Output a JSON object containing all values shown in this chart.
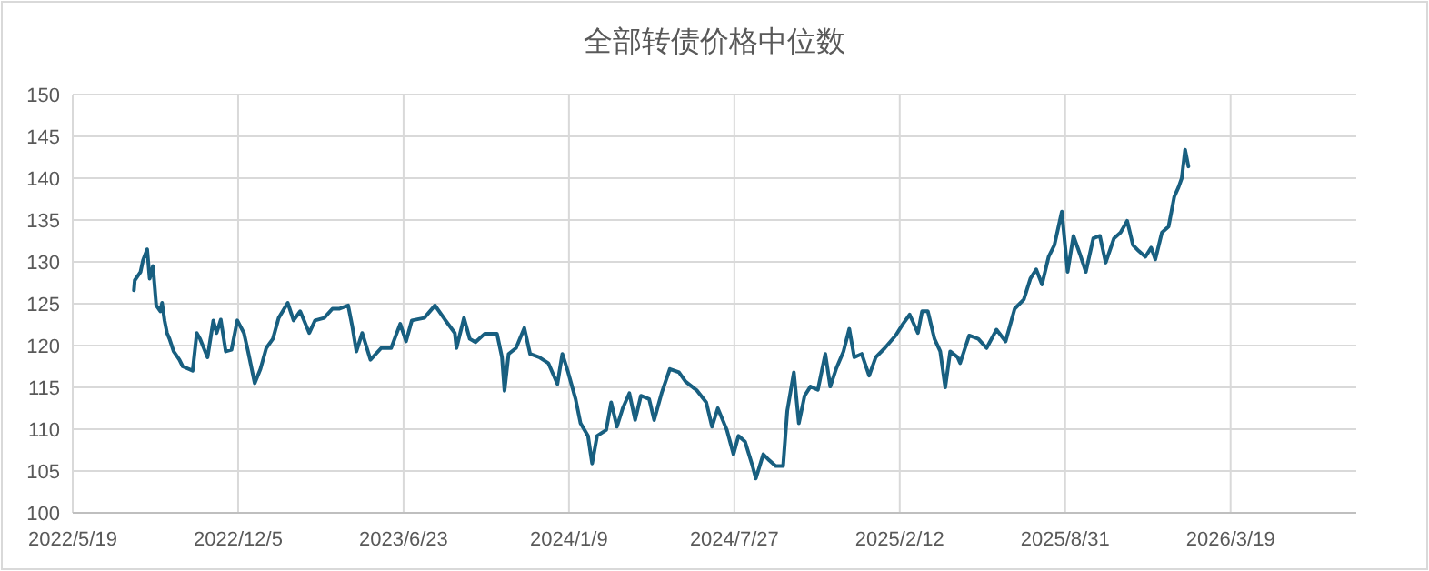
{
  "chart_data": {
    "type": "line",
    "title": "全部转债价格中位数",
    "x": [
      "2022-08-01",
      "2022-08-02",
      "2022-08-09",
      "2022-08-12",
      "2022-08-17",
      "2022-08-20",
      "2022-08-24",
      "2022-08-28",
      "2022-09-02",
      "2022-09-04",
      "2022-09-07",
      "2022-09-10",
      "2022-09-13",
      "2022-09-18",
      "2022-09-25",
      "2022-09-29",
      "2022-10-11",
      "2022-10-16",
      "2022-10-20",
      "2022-10-29",
      "2022-11-05",
      "2022-11-09",
      "2022-11-14",
      "2022-11-20",
      "2022-11-27",
      "2022-12-04",
      "2022-12-12",
      "2022-12-17",
      "2022-12-25",
      "2023-01-01",
      "2023-01-08",
      "2023-01-16",
      "2023-01-23",
      "2023-02-03",
      "2023-02-10",
      "2023-02-18",
      "2023-03-01",
      "2023-03-08",
      "2023-03-19",
      "2023-03-29",
      "2023-04-06",
      "2023-04-17",
      "2023-04-22",
      "2023-04-27",
      "2023-05-04",
      "2023-05-14",
      "2023-05-27",
      "2023-06-08",
      "2023-06-19",
      "2023-06-26",
      "2023-07-03",
      "2023-07-18",
      "2023-07-31",
      "2023-08-12",
      "2023-08-24",
      "2023-08-26",
      "2023-09-04",
      "2023-09-11",
      "2023-09-18",
      "2023-09-29",
      "2023-10-14",
      "2023-10-20",
      "2023-10-23",
      "2023-10-28",
      "2023-11-06",
      "2023-11-16",
      "2023-11-23",
      "2023-12-04",
      "2023-12-15",
      "2023-12-26",
      "2024-01-01",
      "2024-01-08",
      "2024-01-17",
      "2024-01-23",
      "2024-02-01",
      "2024-02-06",
      "2024-02-12",
      "2024-02-23",
      "2024-02-29",
      "2024-03-07",
      "2024-03-14",
      "2024-03-22",
      "2024-03-29",
      "2024-04-05",
      "2024-04-15",
      "2024-04-21",
      "2024-04-30",
      "2024-05-10",
      "2024-05-21",
      "2024-05-29",
      "2024-06-12",
      "2024-06-23",
      "2024-06-30",
      "2024-07-07",
      "2024-07-18",
      "2024-07-26",
      "2024-08-01",
      "2024-08-09",
      "2024-08-18",
      "2024-08-22",
      "2024-08-31",
      "2024-09-07",
      "2024-09-15",
      "2024-09-24",
      "2024-09-29",
      "2024-10-07",
      "2024-10-13",
      "2024-10-20",
      "2024-10-27",
      "2024-11-05",
      "2024-11-14",
      "2024-11-20",
      "2024-11-27",
      "2024-12-06",
      "2024-12-13",
      "2024-12-19",
      "2024-12-28",
      "2025-01-06",
      "2025-01-14",
      "2025-01-25",
      "2025-02-07",
      "2025-02-16",
      "2025-02-24",
      "2025-03-06",
      "2025-03-11",
      "2025-03-18",
      "2025-03-26",
      "2025-04-02",
      "2025-04-08",
      "2025-04-14",
      "2025-04-23",
      "2025-04-26",
      "2025-05-07",
      "2025-05-18",
      "2025-05-28",
      "2025-06-09",
      "2025-06-20",
      "2025-07-01",
      "2025-07-12",
      "2025-07-20",
      "2025-07-27",
      "2025-08-03",
      "2025-08-11",
      "2025-08-18",
      "2025-08-27",
      "2025-09-03",
      "2025-09-10",
      "2025-09-18",
      "2025-09-25",
      "2025-10-04",
      "2025-10-12",
      "2025-10-19",
      "2025-10-29",
      "2025-11-06",
      "2025-11-14",
      "2025-11-21",
      "2025-11-28",
      "2025-12-06",
      "2025-12-13",
      "2025-12-18",
      "2025-12-26",
      "2026-01-03",
      "2026-01-10",
      "2026-01-15",
      "2026-01-19",
      "2026-01-23",
      "2026-01-27"
    ],
    "series": [
      {
        "color": "#185f80",
        "values": [
          126.6,
          127.8,
          128.8,
          130.2,
          131.5,
          128.0,
          129.5,
          124.8,
          124.1,
          125.1,
          123.0,
          121.5,
          120.8,
          119.3,
          118.3,
          117.5,
          117.0,
          121.5,
          120.8,
          118.6,
          123.0,
          121.5,
          123.1,
          119.3,
          119.5,
          123.0,
          121.5,
          119.3,
          115.5,
          117.2,
          119.7,
          120.8,
          123.3,
          125.1,
          123.0,
          124.1,
          121.5,
          123.0,
          123.3,
          124.4,
          124.4,
          124.8,
          122.3,
          119.3,
          121.5,
          118.3,
          119.7,
          119.7,
          122.6,
          120.5,
          123.0,
          123.3,
          124.8,
          123.1,
          121.5,
          119.7,
          123.3,
          120.8,
          120.4,
          121.4,
          121.4,
          118.6,
          114.6,
          119.0,
          119.7,
          122.1,
          119.0,
          118.6,
          117.9,
          115.4,
          119.0,
          116.8,
          113.6,
          110.7,
          109.2,
          105.9,
          109.2,
          109.9,
          113.2,
          110.3,
          112.5,
          114.3,
          111.1,
          114.0,
          113.6,
          111.1,
          114.3,
          117.2,
          116.8,
          115.7,
          114.6,
          113.2,
          110.3,
          112.5,
          109.9,
          107.0,
          109.2,
          108.5,
          105.6,
          104.1,
          107.0,
          106.3,
          105.6,
          105.6,
          112.2,
          116.8,
          110.7,
          114.0,
          115.1,
          114.7,
          119.0,
          115.1,
          117.2,
          119.3,
          122.0,
          118.6,
          119.0,
          116.4,
          118.6,
          119.7,
          121.2,
          122.6,
          123.7,
          121.5,
          124.1,
          124.1,
          120.8,
          119.3,
          115.0,
          119.3,
          118.6,
          117.9,
          121.2,
          120.8,
          119.7,
          121.9,
          120.5,
          124.4,
          125.5,
          128.0,
          129.1,
          127.3,
          130.6,
          132.0,
          136.0,
          128.8,
          133.1,
          130.9,
          128.8,
          132.8,
          133.1,
          129.9,
          132.8,
          133.5,
          134.9,
          132.0,
          131.3,
          130.6,
          131.7,
          130.3,
          133.5,
          134.2,
          137.8,
          138.9,
          140.0,
          143.4,
          141.4
        ]
      }
    ],
    "xlim": [
      "2022-05-19",
      "2026-08-18"
    ],
    "xticks": [
      {
        "value": "2022-05-19",
        "label": "2022/5/19"
      },
      {
        "value": "2022-12-05",
        "label": "2022/12/5"
      },
      {
        "value": "2023-06-23",
        "label": "2023/6/23"
      },
      {
        "value": "2024-01-09",
        "label": "2024/1/9"
      },
      {
        "value": "2024-07-27",
        "label": "2024/7/27"
      },
      {
        "value": "2025-02-12",
        "label": "2025/2/12"
      },
      {
        "value": "2025-08-31",
        "label": "2025/8/31"
      },
      {
        "value": "2026-03-19",
        "label": "2026/3/19"
      }
    ],
    "ylim": [
      100,
      150
    ],
    "yticks": [
      100,
      105,
      110,
      115,
      120,
      125,
      130,
      135,
      140,
      145,
      150
    ],
    "grid": true
  }
}
